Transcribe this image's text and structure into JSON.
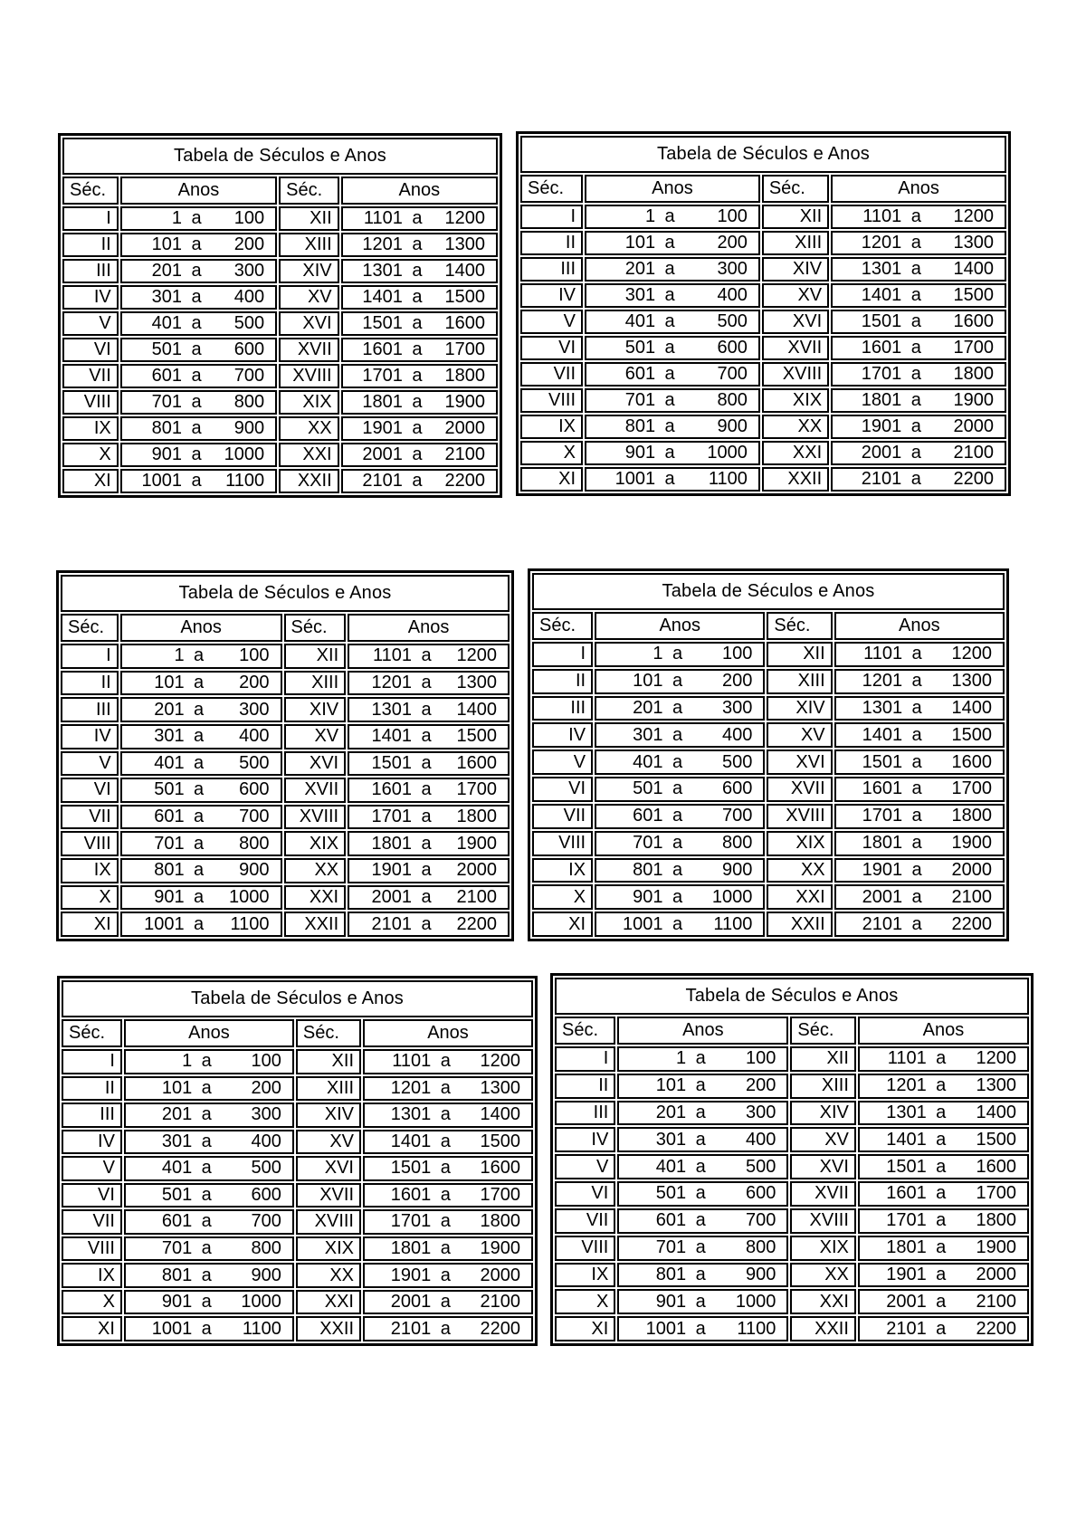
{
  "page": {
    "background": "#ffffff",
    "text_color": "#000000",
    "border_color": "#000000",
    "table_copies": 6
  },
  "table": {
    "title": "Tabela de Séculos e Anos",
    "col_headers": [
      "Séc.",
      "Anos",
      "Séc.",
      "Anos"
    ],
    "separator": "a",
    "rows": [
      {
        "sec_left": "I",
        "from_left": "1",
        "to_left": "100",
        "sec_right": "XII",
        "from_right": "1101",
        "to_right": "1200"
      },
      {
        "sec_left": "II",
        "from_left": "101",
        "to_left": "200",
        "sec_right": "XIII",
        "from_right": "1201",
        "to_right": "1300"
      },
      {
        "sec_left": "III",
        "from_left": "201",
        "to_left": "300",
        "sec_right": "XIV",
        "from_right": "1301",
        "to_right": "1400"
      },
      {
        "sec_left": "IV",
        "from_left": "301",
        "to_left": "400",
        "sec_right": "XV",
        "from_right": "1401",
        "to_right": "1500"
      },
      {
        "sec_left": "V",
        "from_left": "401",
        "to_left": "500",
        "sec_right": "XVI",
        "from_right": "1501",
        "to_right": "1600"
      },
      {
        "sec_left": "VI",
        "from_left": "501",
        "to_left": "600",
        "sec_right": "XVII",
        "from_right": "1601",
        "to_right": "1700"
      },
      {
        "sec_left": "VII",
        "from_left": "601",
        "to_left": "700",
        "sec_right": "XVIII",
        "from_right": "1701",
        "to_right": "1800"
      },
      {
        "sec_left": "VIII",
        "from_left": "701",
        "to_left": "800",
        "sec_right": "XIX",
        "from_right": "1801",
        "to_right": "1900"
      },
      {
        "sec_left": "IX",
        "from_left": "801",
        "to_left": "900",
        "sec_right": "XX",
        "from_right": "1901",
        "to_right": "2000"
      },
      {
        "sec_left": "X",
        "from_left": "901",
        "to_left": "1000",
        "sec_right": "XXI",
        "from_right": "2001",
        "to_right": "2100"
      },
      {
        "sec_left": "XI",
        "from_left": "1001",
        "to_left": "1100",
        "sec_right": "XXII",
        "from_right": "2101",
        "to_right": "2200"
      }
    ]
  }
}
